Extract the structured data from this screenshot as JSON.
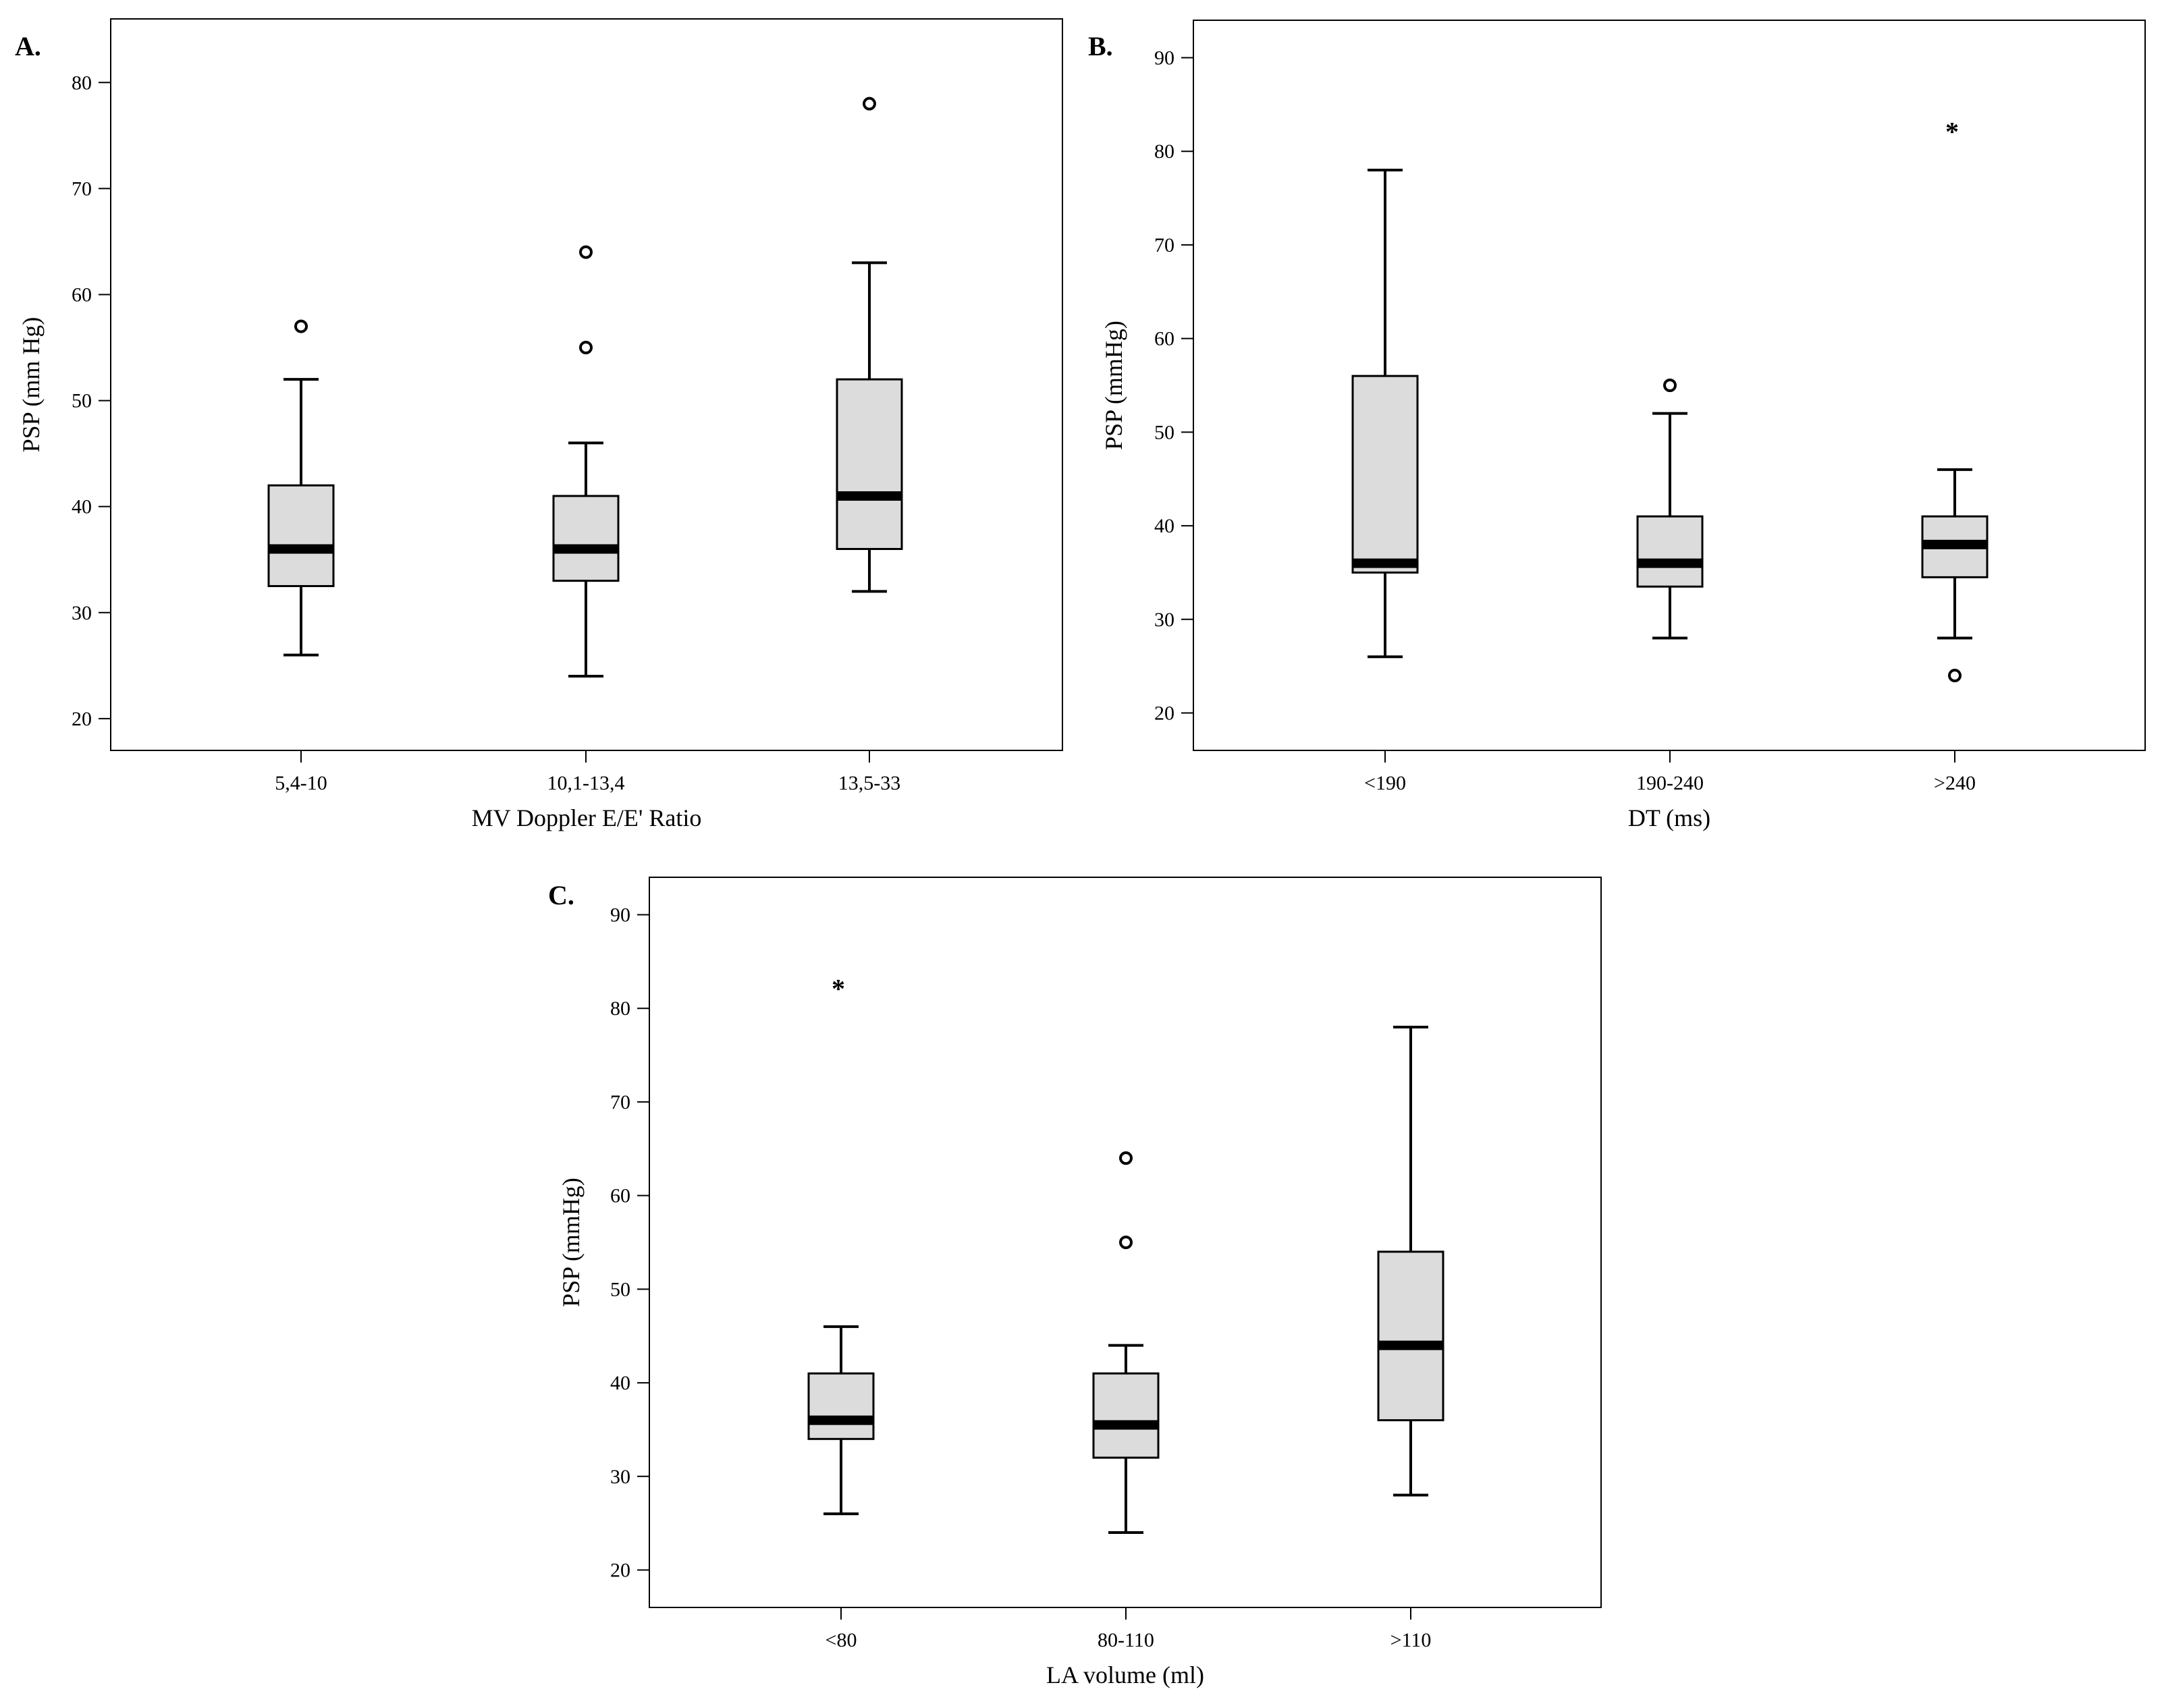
{
  "chart_data": [
    {
      "type": "box",
      "panel_label": "A.",
      "ylabel": "PSP (mm Hg)",
      "xlabel": "MV Doppler E/E' Ratio",
      "ylim": [
        17,
        86
      ],
      "yticks": [
        20,
        30,
        40,
        50,
        60,
        70,
        80
      ],
      "categories": [
        "5,4-10",
        "10,1-13,4",
        "13,5-33"
      ],
      "boxes": [
        {
          "category": "5,4-10",
          "whisker_low": 26,
          "q1": 32.5,
          "median": 36,
          "q3": 42,
          "whisker_high": 52,
          "outliers": [
            57
          ],
          "extremes": []
        },
        {
          "category": "10,1-13,4",
          "whisker_low": 24,
          "q1": 33,
          "median": 36,
          "q3": 41,
          "whisker_high": 46,
          "outliers": [
            55,
            64
          ],
          "extremes": []
        },
        {
          "category": "13,5-33",
          "whisker_low": 32,
          "q1": 36,
          "median": 41,
          "q3": 52,
          "whisker_high": 63,
          "outliers": [
            78
          ],
          "extremes": []
        }
      ]
    },
    {
      "type": "box",
      "panel_label": "B.",
      "ylabel": "PSP (mmHg)",
      "xlabel": "DT (ms)",
      "ylim": [
        16,
        94
      ],
      "yticks": [
        20,
        30,
        40,
        50,
        60,
        70,
        80,
        90
      ],
      "categories": [
        "<190",
        "190-240",
        ">240"
      ],
      "boxes": [
        {
          "category": "<190",
          "whisker_low": 26,
          "q1": 35,
          "median": 36,
          "q3": 56,
          "whisker_high": 78,
          "outliers": [],
          "extremes": []
        },
        {
          "category": "190-240",
          "whisker_low": 28,
          "q1": 33.5,
          "median": 36,
          "q3": 41,
          "whisker_high": 52,
          "outliers": [
            55
          ],
          "extremes": []
        },
        {
          "category": ">240",
          "whisker_low": 28,
          "q1": 34.5,
          "median": 38,
          "q3": 41,
          "whisker_high": 46,
          "outliers": [
            24
          ],
          "extremes": [
            83
          ]
        }
      ]
    },
    {
      "type": "box",
      "panel_label": "C.",
      "ylabel": "PSP (mmHg)",
      "xlabel": "LA volume (ml)",
      "ylim": [
        16,
        94
      ],
      "yticks": [
        20,
        30,
        40,
        50,
        60,
        70,
        80,
        90
      ],
      "categories": [
        "<80",
        "80-110",
        ">110"
      ],
      "boxes": [
        {
          "category": "<80",
          "whisker_low": 26,
          "q1": 34,
          "median": 36,
          "q3": 41,
          "whisker_high": 46,
          "outliers": [],
          "extremes": [
            83
          ]
        },
        {
          "category": "80-110",
          "whisker_low": 24,
          "q1": 32,
          "median": 35.5,
          "q3": 41,
          "whisker_high": 44,
          "outliers": [
            55,
            64
          ],
          "extremes": []
        },
        {
          "category": ">110",
          "whisker_low": 28,
          "q1": 36,
          "median": 44,
          "q3": 54,
          "whisker_high": 78,
          "outliers": [],
          "extremes": []
        }
      ]
    }
  ],
  "extreme_symbol": "*"
}
